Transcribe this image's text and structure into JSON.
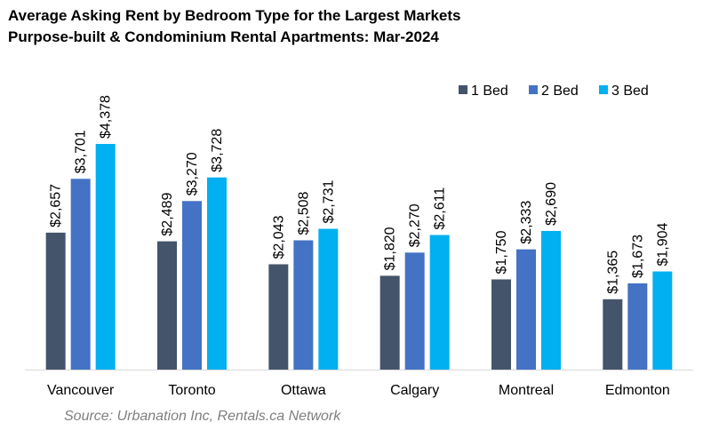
{
  "chart_data": {
    "type": "bar",
    "title": "Average Asking Rent by Bedroom Type for the Largest Markets",
    "subtitle": "Purpose-built & Condominium Rental Apartments: Mar-2024",
    "categories": [
      "Vancouver",
      "Toronto",
      "Ottawa",
      "Calgary",
      "Montreal",
      "Edmonton"
    ],
    "series": [
      {
        "name": "1 Bed",
        "color": "#44546a",
        "values": [
          2657,
          2489,
          2043,
          1820,
          1750,
          1365
        ],
        "labels": [
          "$2,657",
          "$2,489",
          "$2,043",
          "$1,820",
          "$1,750",
          "$1,365"
        ]
      },
      {
        "name": "2 Bed",
        "color": "#4472c4",
        "values": [
          3701,
          3270,
          2508,
          2270,
          2333,
          1673
        ],
        "labels": [
          "$3,701",
          "$3,270",
          "$2,508",
          "$2,270",
          "$2,333",
          "$1,673"
        ]
      },
      {
        "name": "3 Bed",
        "color": "#00b0f0",
        "values": [
          4378,
          3728,
          2731,
          2611,
          2690,
          1904
        ],
        "labels": [
          "$4,378",
          "$3,728",
          "$2,731",
          "$2,611",
          "$2,690",
          "$1,904"
        ]
      }
    ],
    "ylim": [
      0,
      4378
    ],
    "grid": false,
    "legend_position": "top-right"
  },
  "source": "Source: Urbanation Inc, Rentals.ca Network"
}
